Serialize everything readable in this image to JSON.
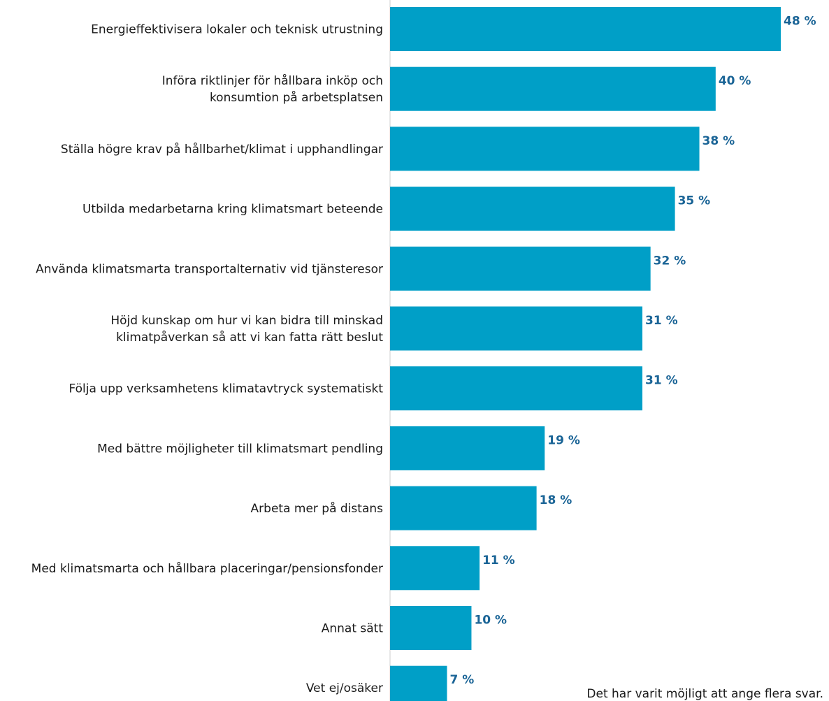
{
  "chart_data": {
    "type": "bar",
    "orientation": "horizontal",
    "categories": [
      [
        "Energieffektivisera lokaler och teknisk utrustning"
      ],
      [
        "Införa riktlinjer för hållbara inköp och",
        "konsumtion på arbetsplatsen"
      ],
      [
        "Ställa högre krav på hållbarhet/klimat i upphandlingar"
      ],
      [
        "Utbilda medarbetarna kring klimatsmart beteende"
      ],
      [
        "Använda klimatsmarta transportalternativ vid tjänsteresor"
      ],
      [
        "Höjd kunskap om hur vi kan bidra till minskad",
        "klimatpåverkan så att vi kan fatta rätt beslut"
      ],
      [
        "Följa upp verksamhetens klimatavtryck systematiskt"
      ],
      [
        "Med bättre möjligheter till klimatsmart pendling"
      ],
      [
        "Arbeta mer på distans"
      ],
      [
        "Med klimatsmarta och hållbara placeringar/pensionsfonder"
      ],
      [
        "Annat sätt"
      ],
      [
        "Vet ej/osäker"
      ]
    ],
    "values": [
      48,
      40,
      38,
      35,
      32,
      31,
      31,
      19,
      18,
      11,
      10,
      7
    ],
    "value_labels": [
      "48 %",
      "40 %",
      "38 %",
      "35 %",
      "32 %",
      "31 %",
      "31 %",
      "19 %",
      "18 %",
      "11 %",
      "10 %",
      "7 %"
    ],
    "xlim": [
      0,
      48
    ],
    "grid": false,
    "colors": {
      "bar": "#009fc7",
      "value_label": "#1a6496",
      "axis": "#cccccc",
      "text": "#1a1a1a"
    }
  },
  "footnote": "Det har varit möjligt att ange flera svar."
}
